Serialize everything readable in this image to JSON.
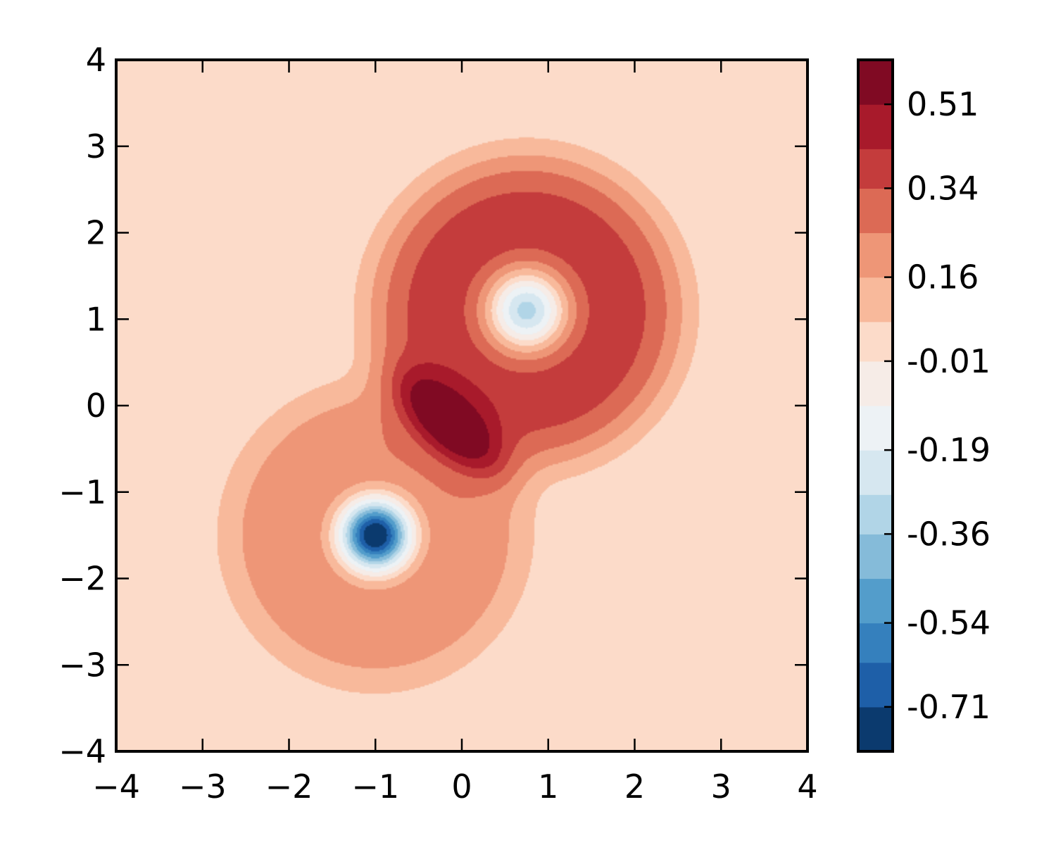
{
  "chart_data": {
    "type": "heatmap",
    "subtype": "filled-contour",
    "title": "",
    "xlabel": "",
    "ylabel": "",
    "xlim": [
      -4,
      4
    ],
    "ylim": [
      -4,
      4
    ],
    "x_ticks": [
      -4,
      -3,
      -2,
      -1,
      0,
      1,
      2,
      3,
      4
    ],
    "y_ticks": [
      -4,
      -3,
      -2,
      -1,
      0,
      1,
      2,
      3,
      4
    ],
    "x_tick_labels": [
      "−4",
      "−3",
      "−2",
      "−1",
      "0",
      "1",
      "2",
      "3",
      "4"
    ],
    "y_tick_labels": [
      "−4",
      "−3",
      "−2",
      "−1",
      "0",
      "1",
      "2",
      "3",
      "4"
    ],
    "grid": false,
    "colormap": "RdBu_r",
    "levels": [
      -0.8,
      -0.71,
      -0.62,
      -0.54,
      -0.45,
      -0.36,
      -0.28,
      -0.19,
      -0.1,
      -0.01,
      0.07,
      0.16,
      0.25,
      0.34,
      0.42,
      0.51,
      0.6
    ],
    "level_colors": [
      "#0b3a6e",
      "#1e5fa8",
      "#3580bd",
      "#539dcb",
      "#85bbd9",
      "#b1d5e7",
      "#d6e7f0",
      "#edf2f5",
      "#f6ece7",
      "#fcdbc9",
      "#f8b99b",
      "#ee9677",
      "#dc6a55",
      "#c43c3c",
      "#a81a2b",
      "#800a23"
    ],
    "colorbar": {
      "position": "right",
      "tick_labels": [
        "0.51",
        "0.34",
        "0.16",
        "-0.01",
        "-0.19",
        "-0.36",
        "-0.54",
        "-0.71"
      ],
      "tick_values": [
        0.51,
        0.34,
        0.16,
        -0.01,
        -0.19,
        -0.36,
        -0.54,
        -0.71
      ]
    },
    "features": [
      {
        "kind": "well",
        "center": [
          -1.0,
          -1.5
        ],
        "peak_value": -0.8
      },
      {
        "kind": "well",
        "center": [
          0.75,
          1.1
        ],
        "peak_value": -0.5
      },
      {
        "kind": "ridge",
        "center": [
          -0.15,
          -0.2
        ],
        "peak_value": 0.55
      }
    ]
  }
}
